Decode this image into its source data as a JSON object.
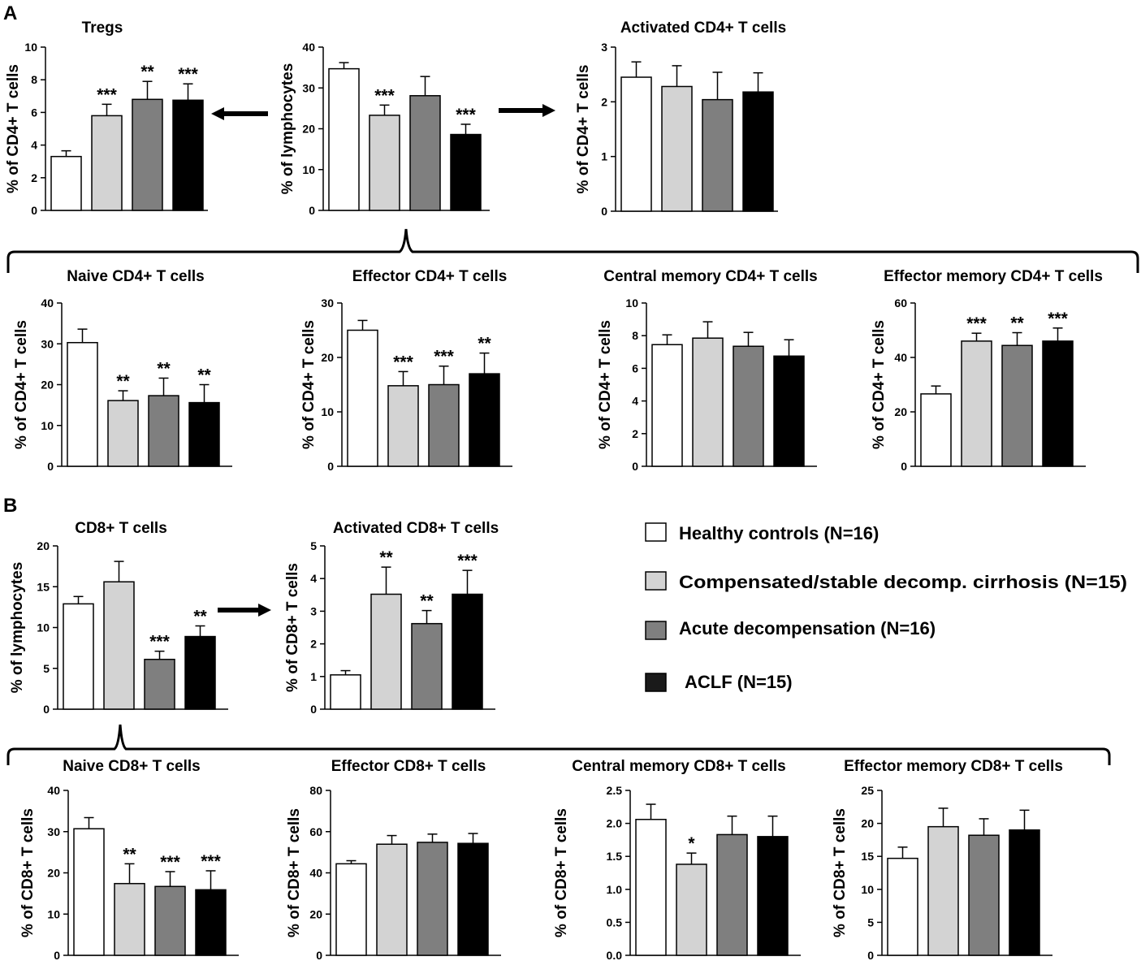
{
  "panel_labels": [
    "A",
    "B"
  ],
  "group_colors": [
    "#ffffff",
    "#d3d3d3",
    "#7f7f7f",
    "#000000"
  ],
  "legend": {
    "items": [
      "Healthy controls (N=16)",
      "Compensated/stable decomp. cirrhosis (N=15)",
      "Acute decompensation (N=16)",
      "ACLF (N=15)"
    ]
  },
  "chart_data": [
    {
      "id": "tregs",
      "type": "bar",
      "title": "Tregs",
      "ylabel": "% of CD4+ T cells",
      "ylim": [
        0,
        10
      ],
      "yticks": [
        0,
        2,
        4,
        6,
        8,
        10
      ],
      "tick_labels": [
        "0",
        "2",
        "4",
        "6",
        "8",
        "10"
      ],
      "categories": [
        "Healthy controls",
        "Compensated/stable decomp. cirrhosis",
        "Acute decompensation",
        "ACLF"
      ],
      "values": [
        3.3,
        5.8,
        6.8,
        6.75
      ],
      "errors": [
        0.35,
        0.7,
        1.1,
        1.0
      ],
      "significance": [
        "",
        "***",
        "**",
        "***"
      ]
    },
    {
      "id": "cd4-total",
      "type": "bar",
      "title": "",
      "ylabel": "% of lymphocytes",
      "ylim": [
        0,
        40
      ],
      "yticks": [
        0,
        10,
        20,
        30,
        40
      ],
      "tick_labels": [
        "0",
        "10",
        "20",
        "30",
        "40"
      ],
      "categories": [
        "Healthy controls",
        "Compensated/stable decomp. cirrhosis",
        "Acute decompensation",
        "ACLF"
      ],
      "values": [
        34.7,
        23.3,
        28.1,
        18.6
      ],
      "errors": [
        1.5,
        2.5,
        4.7,
        2.5
      ],
      "significance": [
        "",
        "***",
        "",
        "***"
      ]
    },
    {
      "id": "activated-cd4",
      "type": "bar",
      "title": "Activated CD4+ T cells",
      "ylabel": "% of CD4+ T cells",
      "ylim": [
        0,
        3
      ],
      "yticks": [
        0,
        1,
        2,
        3
      ],
      "tick_labels": [
        "0",
        "1",
        "2",
        "3"
      ],
      "categories": [
        "Healthy controls",
        "Compensated/stable decomp. cirrhosis",
        "Acute decompensation",
        "ACLF"
      ],
      "values": [
        2.45,
        2.28,
        2.04,
        2.18
      ],
      "errors": [
        0.28,
        0.38,
        0.5,
        0.35
      ],
      "significance": [
        "",
        "",
        "",
        ""
      ]
    },
    {
      "id": "naive-cd4",
      "type": "bar",
      "title": "Naive CD4+ T cells",
      "ylabel": "% of CD4+ T cells",
      "ylim": [
        0,
        40
      ],
      "yticks": [
        0,
        10,
        20,
        30,
        40
      ],
      "tick_labels": [
        "0",
        "10",
        "20",
        "30",
        "40"
      ],
      "categories": [
        "Healthy controls",
        "Compensated/stable decomp. cirrhosis",
        "Acute decompensation",
        "ACLF"
      ],
      "values": [
        30.3,
        16.1,
        17.3,
        15.6
      ],
      "errors": [
        3.3,
        2.4,
        4.3,
        4.4
      ],
      "significance": [
        "",
        "**",
        "**",
        "**"
      ]
    },
    {
      "id": "effector-cd4",
      "type": "bar",
      "title": "Effector CD4+ T cells",
      "ylabel": "% of CD4+ T cells",
      "ylim": [
        0,
        30
      ],
      "yticks": [
        0,
        10,
        20,
        30
      ],
      "tick_labels": [
        "0",
        "10",
        "20",
        "30"
      ],
      "categories": [
        "Healthy controls",
        "Compensated/stable decomp. cirrhosis",
        "Acute decompensation",
        "ACLF"
      ],
      "values": [
        25.0,
        14.8,
        15.0,
        17.0
      ],
      "errors": [
        1.8,
        2.6,
        3.4,
        3.8
      ],
      "significance": [
        "",
        "***",
        "***",
        "**"
      ]
    },
    {
      "id": "central-memory-cd4",
      "type": "bar",
      "title": "Central memory CD4+ T cells",
      "ylabel": "% of CD4+ T cells",
      "ylim": [
        0,
        10
      ],
      "yticks": [
        0,
        2,
        4,
        6,
        8,
        10
      ],
      "tick_labels": [
        "0",
        "2",
        "4",
        "6",
        "8",
        "10"
      ],
      "categories": [
        "Healthy controls",
        "Compensated/stable decomp. cirrhosis",
        "Acute decompensation",
        "ACLF"
      ],
      "values": [
        7.45,
        7.85,
        7.35,
        6.75
      ],
      "errors": [
        0.6,
        1.0,
        0.85,
        1.0
      ],
      "significance": [
        "",
        "",
        "",
        ""
      ]
    },
    {
      "id": "effector-memory-cd4",
      "type": "bar",
      "title": "Effector memory CD4+ T cells",
      "ylabel": "% of CD4+ T cells",
      "ylim": [
        0,
        60
      ],
      "yticks": [
        0,
        20,
        40,
        60
      ],
      "tick_labels": [
        "0",
        "20",
        "40",
        "60"
      ],
      "categories": [
        "Healthy controls",
        "Compensated/stable decomp. cirrhosis",
        "Acute decompensation",
        "ACLF"
      ],
      "values": [
        26.6,
        46.0,
        44.4,
        46.0
      ],
      "errors": [
        2.9,
        2.9,
        4.7,
        4.8
      ],
      "significance": [
        "",
        "***",
        "**",
        "***"
      ]
    },
    {
      "id": "cd8-total",
      "type": "bar",
      "title": "CD8+ T cells",
      "ylabel": "% of lymphocytes",
      "ylim": [
        0,
        20
      ],
      "yticks": [
        0,
        5,
        10,
        15,
        20
      ],
      "tick_labels": [
        "0",
        "5",
        "10",
        "15",
        "20"
      ],
      "categories": [
        "Healthy controls",
        "Compensated/stable decomp. cirrhosis",
        "Acute decompensation",
        "ACLF"
      ],
      "values": [
        12.9,
        15.6,
        6.1,
        8.9
      ],
      "errors": [
        0.9,
        2.5,
        1.0,
        1.3
      ],
      "significance": [
        "",
        "",
        "***",
        "**"
      ]
    },
    {
      "id": "activated-cd8",
      "type": "bar",
      "title": "Activated CD8+ T cells",
      "ylabel": "% of CD8+ T cells",
      "ylim": [
        0,
        5
      ],
      "yticks": [
        0,
        1,
        2,
        3,
        4,
        5
      ],
      "tick_labels": [
        "0",
        "1",
        "2",
        "3",
        "4",
        "5"
      ],
      "categories": [
        "Healthy controls",
        "Compensated/stable decomp. cirrhosis",
        "Acute decompensation",
        "ACLF"
      ],
      "values": [
        1.05,
        3.52,
        2.62,
        3.52
      ],
      "errors": [
        0.13,
        0.83,
        0.4,
        0.73
      ],
      "significance": [
        "",
        "**",
        "**",
        "***"
      ]
    },
    {
      "id": "naive-cd8",
      "type": "bar",
      "title": "Naive CD8+ T cells",
      "ylabel": "% of CD8+ T cells",
      "ylim": [
        0,
        40
      ],
      "yticks": [
        0,
        10,
        20,
        30,
        40
      ],
      "tick_labels": [
        "0",
        "10",
        "20",
        "30",
        "40"
      ],
      "categories": [
        "Healthy controls",
        "Compensated/stable decomp. cirrhosis",
        "Acute decompensation",
        "ACLF"
      ],
      "values": [
        30.7,
        17.4,
        16.7,
        15.9
      ],
      "errors": [
        2.7,
        4.8,
        3.6,
        4.6
      ],
      "significance": [
        "",
        "**",
        "***",
        "***"
      ]
    },
    {
      "id": "effector-cd8",
      "type": "bar",
      "title": "Effector CD8+ T cells",
      "ylabel": "% of CD8+ T cells",
      "ylim": [
        0,
        80
      ],
      "yticks": [
        0,
        20,
        40,
        60,
        80
      ],
      "tick_labels": [
        "0",
        "20",
        "40",
        "60",
        "80"
      ],
      "categories": [
        "Healthy controls",
        "Compensated/stable decomp. cirrhosis",
        "Acute decompensation",
        "ACLF"
      ],
      "values": [
        44.4,
        53.9,
        54.8,
        54.3
      ],
      "errors": [
        1.5,
        4.2,
        4.0,
        4.8
      ],
      "significance": [
        "",
        "",
        "",
        ""
      ]
    },
    {
      "id": "central-memory-cd8",
      "type": "bar",
      "title": "Central memory CD8+ T cells",
      "ylabel": "% of CD8+ T cells",
      "ylim": [
        0,
        2.5
      ],
      "yticks": [
        0,
        0.5,
        1.0,
        1.5,
        2.0,
        2.5
      ],
      "tick_labels": [
        "0.0",
        "0.5",
        "1.0",
        "1.5",
        "2.0",
        "2.5"
      ],
      "categories": [
        "Healthy controls",
        "Compensated/stable decomp. cirrhosis",
        "Acute decompensation",
        "ACLF"
      ],
      "values": [
        2.06,
        1.38,
        1.83,
        1.8
      ],
      "errors": [
        0.23,
        0.17,
        0.28,
        0.31
      ],
      "significance": [
        "",
        "*",
        "",
        ""
      ]
    },
    {
      "id": "effector-memory-cd8",
      "type": "bar",
      "title": "Effector memory CD8+ T cells",
      "ylabel": "% of CD8+ T cells",
      "ylim": [
        0,
        25
      ],
      "yticks": [
        0,
        5,
        10,
        15,
        20,
        25
      ],
      "tick_labels": [
        "0",
        "5",
        "10",
        "15",
        "20",
        "25"
      ],
      "categories": [
        "Healthy controls",
        "Compensated/stable decomp. cirrhosis",
        "Acute decompensation",
        "ACLF"
      ],
      "values": [
        14.7,
        19.5,
        18.2,
        19.0
      ],
      "errors": [
        1.7,
        2.8,
        2.5,
        3.0
      ],
      "significance": [
        "",
        "",
        "",
        ""
      ]
    }
  ]
}
